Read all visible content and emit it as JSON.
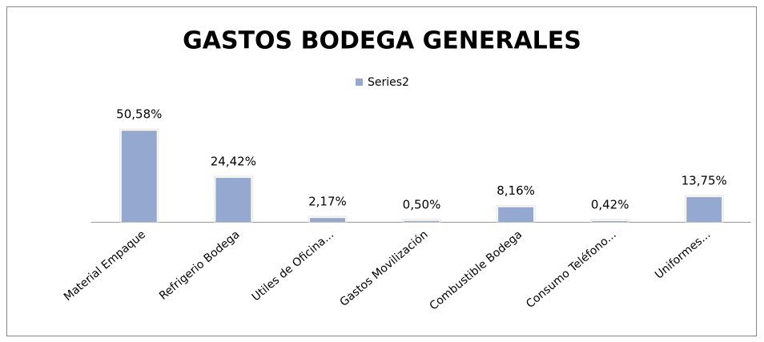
{
  "chart_data": {
    "type": "bar",
    "title": "GASTOS BODEGA GENERALES",
    "categories": [
      "Material Empaque",
      "Refrigerio Bodega",
      "Utiles de Oficina...",
      "Gastos Movilización",
      "Combustible Bodega",
      "Consumo Teléfono...",
      "Uniformes..."
    ],
    "series": [
      {
        "name": "Series2",
        "color": "#95a9d0",
        "values": [
          50.58,
          24.42,
          2.17,
          0.5,
          8.16,
          0.42,
          13.75
        ],
        "value_labels": [
          "50,58%",
          "24,42%",
          "2,17%",
          "0,50%",
          "8,16%",
          "0,42%",
          "13,75%"
        ]
      }
    ],
    "legend": "top"
  }
}
